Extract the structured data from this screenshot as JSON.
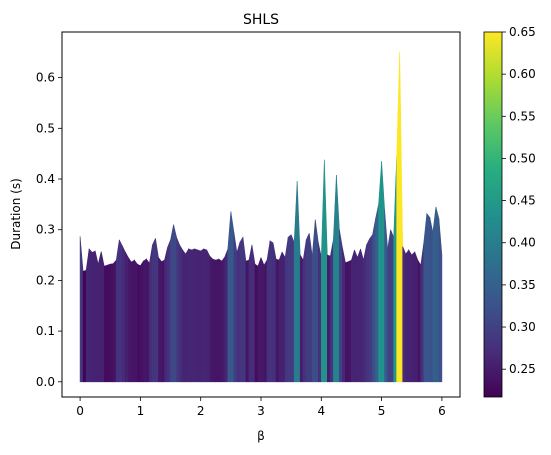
{
  "chart_data": {
    "type": "area",
    "title": "SHLS",
    "xlabel": "β",
    "ylabel": "Duration (s)",
    "xlim": [
      -0.3,
      6.3
    ],
    "ylim": [
      -0.03,
      0.69
    ],
    "xticks": [
      0,
      1,
      2,
      3,
      4,
      5,
      6
    ],
    "xtick_labels": [
      "0",
      "1",
      "2",
      "3",
      "4",
      "5",
      "6"
    ],
    "yticks": [
      0.0,
      0.1,
      0.2,
      0.3,
      0.4,
      0.5,
      0.6
    ],
    "ytick_labels": [
      "0.0",
      "0.1",
      "0.2",
      "0.3",
      "0.4",
      "0.5",
      "0.6"
    ],
    "grid": false,
    "colorbar": {
      "colormap": "viridis",
      "min": 0.217,
      "max": 0.65,
      "ticks": [
        0.25,
        0.3,
        0.35,
        0.4,
        0.45,
        0.5,
        0.55,
        0.6,
        0.65
      ],
      "tick_labels": [
        "0.25",
        "0.30",
        "0.35",
        "0.40",
        "0.45",
        "0.50",
        "0.55",
        "0.60",
        "0.65"
      ]
    },
    "series": [
      {
        "x": [
          0.0,
          0.05,
          0.1,
          0.15,
          0.2,
          0.25,
          0.3,
          0.35,
          0.4,
          0.45,
          0.5,
          0.55,
          0.6,
          0.65,
          0.7,
          0.75,
          0.8,
          0.85,
          0.9,
          0.95,
          1.0,
          1.05,
          1.1,
          1.15,
          1.2,
          1.25,
          1.3,
          1.35,
          1.4,
          1.45,
          1.5,
          1.55,
          1.6,
          1.65,
          1.7,
          1.75,
          1.8,
          1.85,
          1.9,
          1.95,
          2.0,
          2.05,
          2.1,
          2.15,
          2.2,
          2.25,
          2.3,
          2.35,
          2.4,
          2.45,
          2.5,
          2.55,
          2.6,
          2.65,
          2.7,
          2.75,
          2.8,
          2.85,
          2.9,
          2.95,
          3.0,
          3.05,
          3.1,
          3.15,
          3.2,
          3.25,
          3.3,
          3.35,
          3.4,
          3.45,
          3.5,
          3.55,
          3.6,
          3.65,
          3.7,
          3.75,
          3.8,
          3.85,
          3.9,
          3.95,
          4.0,
          4.05,
          4.1,
          4.15,
          4.2,
          4.25,
          4.3,
          4.35,
          4.4,
          4.45,
          4.5,
          4.55,
          4.6,
          4.65,
          4.7,
          4.75,
          4.8,
          4.85,
          4.9,
          4.95,
          5.0,
          5.05,
          5.1,
          5.15,
          5.2,
          5.25,
          5.3,
          5.35,
          5.4,
          5.45,
          5.5,
          5.55,
          5.6,
          5.65,
          5.7,
          5.75,
          5.8,
          5.85,
          5.9,
          5.95,
          6.0
        ],
        "y": [
          0.287,
          0.218,
          0.22,
          0.262,
          0.255,
          0.258,
          0.232,
          0.257,
          0.228,
          0.23,
          0.232,
          0.233,
          0.24,
          0.28,
          0.268,
          0.256,
          0.245,
          0.236,
          0.24,
          0.232,
          0.229,
          0.238,
          0.242,
          0.234,
          0.27,
          0.283,
          0.245,
          0.237,
          0.24,
          0.265,
          0.28,
          0.31,
          0.285,
          0.27,
          0.26,
          0.252,
          0.262,
          0.26,
          0.262,
          0.26,
          0.258,
          0.262,
          0.26,
          0.248,
          0.242,
          0.24,
          0.242,
          0.238,
          0.246,
          0.262,
          0.336,
          0.296,
          0.255,
          0.275,
          0.285,
          0.238,
          0.24,
          0.27,
          0.232,
          0.228,
          0.245,
          0.23,
          0.24,
          0.278,
          0.274,
          0.242,
          0.24,
          0.256,
          0.245,
          0.285,
          0.29,
          0.275,
          0.396,
          0.25,
          0.24,
          0.28,
          0.293,
          0.248,
          0.32,
          0.275,
          0.246,
          0.438,
          0.25,
          0.248,
          0.28,
          0.408,
          0.3,
          0.265,
          0.235,
          0.237,
          0.24,
          0.26,
          0.245,
          0.262,
          0.24,
          0.27,
          0.282,
          0.29,
          0.322,
          0.35,
          0.435,
          0.34,
          0.262,
          0.3,
          0.285,
          0.445,
          0.65,
          0.267,
          0.252,
          0.26,
          0.25,
          0.256,
          0.24,
          0.23,
          0.275,
          0.332,
          0.324,
          0.295,
          0.345,
          0.322,
          0.25
        ]
      }
    ]
  }
}
